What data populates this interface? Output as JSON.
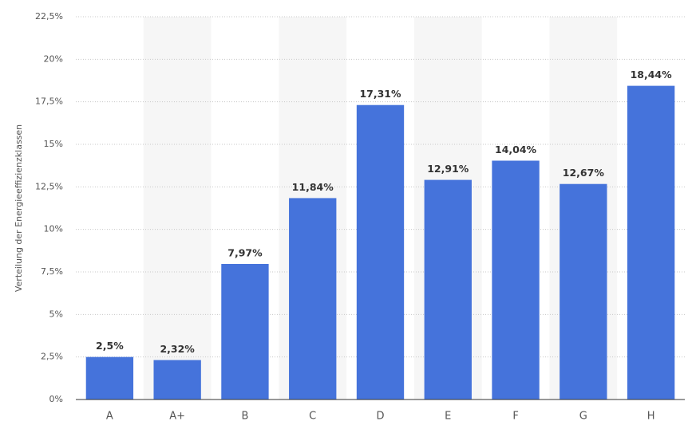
{
  "chart_data": {
    "type": "bar",
    "y_label": "Verteilung der Energieeffizienzklassen",
    "categories": [
      "A",
      "A+",
      "B",
      "C",
      "D",
      "E",
      "F",
      "G",
      "H"
    ],
    "values": [
      2.5,
      2.32,
      7.97,
      11.84,
      17.31,
      12.91,
      14.04,
      12.67,
      18.44
    ],
    "value_labels": [
      "2,5%",
      "2,32%",
      "7,97%",
      "11,84%",
      "17,31%",
      "12,91%",
      "14,04%",
      "12,67%",
      "18,44%"
    ],
    "color": "#4573db",
    "ylim": [
      0,
      22.5
    ],
    "yticks": [
      {
        "value": 0,
        "label": "0%"
      },
      {
        "value": 2.5,
        "label": "2,5%"
      },
      {
        "value": 5,
        "label": "5%"
      },
      {
        "value": 7.5,
        "label": "7,5%"
      },
      {
        "value": 10,
        "label": "10%"
      },
      {
        "value": 12.5,
        "label": "12,5%"
      },
      {
        "value": 15,
        "label": "15%"
      },
      {
        "value": 17.5,
        "label": "17,5%"
      },
      {
        "value": 20,
        "label": "20%"
      },
      {
        "value": 22.5,
        "label": "22,5%"
      }
    ],
    "grid": true
  }
}
